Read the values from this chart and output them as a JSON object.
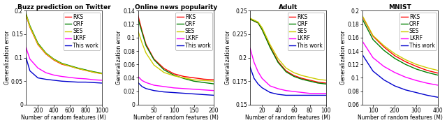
{
  "panels": [
    {
      "title": "Buzz prediction on Twitter",
      "xlabel": "Number of random features (M)",
      "ylabel": "Generalization error",
      "xlim": [
        50,
        1000
      ],
      "ylim": [
        0,
        0.2
      ],
      "xticks": [
        200,
        400,
        600,
        800,
        1000
      ],
      "yticks": [
        0,
        0.05,
        0.1,
        0.15,
        0.2
      ],
      "ytick_labels": [
        "0",
        "0.05",
        "0.1",
        "0.15",
        "0.2"
      ],
      "series": {
        "RKS": {
          "x": [
            50,
            100,
            200,
            300,
            400,
            500,
            600,
            700,
            800,
            900,
            1000
          ],
          "y": [
            0.192,
            0.165,
            0.128,
            0.108,
            0.095,
            0.086,
            0.082,
            0.077,
            0.073,
            0.069,
            0.066
          ],
          "color": "#FF0000"
        },
        "ORF": {
          "x": [
            50,
            100,
            200,
            300,
            400,
            500,
            600,
            700,
            800,
            900,
            1000
          ],
          "y": [
            0.194,
            0.168,
            0.131,
            0.11,
            0.097,
            0.088,
            0.083,
            0.078,
            0.074,
            0.07,
            0.067
          ],
          "color": "#008000"
        },
        "SES": {
          "x": [
            50,
            100,
            200,
            300,
            400,
            500,
            600,
            700,
            800,
            900,
            1000
          ],
          "y": [
            0.193,
            0.166,
            0.129,
            0.109,
            0.096,
            0.087,
            0.082,
            0.077,
            0.073,
            0.069,
            0.066
          ],
          "color": "#CCCC00"
        },
        "LKRF": {
          "x": [
            50,
            100,
            200,
            300,
            400,
            500,
            600,
            700,
            800,
            900,
            1000
          ],
          "y": [
            0.122,
            0.097,
            0.078,
            0.068,
            0.063,
            0.06,
            0.058,
            0.056,
            0.055,
            0.053,
            0.052
          ],
          "color": "#FF00FF"
        },
        "This work": {
          "x": [
            50,
            100,
            200,
            300,
            400,
            500,
            600,
            700,
            800,
            900,
            1000
          ],
          "y": [
            0.101,
            0.072,
            0.057,
            0.054,
            0.052,
            0.05,
            0.049,
            0.048,
            0.048,
            0.047,
            0.046
          ],
          "color": "#0000CD"
        }
      }
    },
    {
      "title": "Online news popularity",
      "xlabel": "Number of random features (M)",
      "ylabel": "Generalization error",
      "xlim": [
        10,
        200
      ],
      "ylim": [
        0,
        0.14
      ],
      "xticks": [
        50,
        100,
        150,
        200
      ],
      "yticks": [
        0,
        0.02,
        0.04,
        0.06,
        0.08,
        0.1,
        0.12,
        0.14
      ],
      "ytick_labels": [
        "0",
        "0.02",
        "0.04",
        "0.06",
        "0.08",
        "0.1",
        "0.12",
        "0.14"
      ],
      "series": {
        "RKS": {
          "x": [
            10,
            20,
            30,
            50,
            75,
            100,
            125,
            150,
            175,
            200
          ],
          "y": [
            0.133,
            0.11,
            0.09,
            0.068,
            0.054,
            0.046,
            0.042,
            0.04,
            0.038,
            0.037
          ],
          "color": "#FF0000"
        },
        "ORF": {
          "x": [
            10,
            20,
            30,
            50,
            75,
            100,
            125,
            150,
            175,
            200
          ],
          "y": [
            0.128,
            0.108,
            0.088,
            0.067,
            0.052,
            0.044,
            0.039,
            0.035,
            0.033,
            0.031
          ],
          "color": "#008000"
        },
        "SES": {
          "x": [
            10,
            20,
            30,
            50,
            75,
            100,
            125,
            150,
            175,
            200
          ],
          "y": [
            0.11,
            0.092,
            0.077,
            0.059,
            0.048,
            0.043,
            0.04,
            0.037,
            0.036,
            0.035
          ],
          "color": "#CCCC00"
        },
        "LKRF": {
          "x": [
            10,
            20,
            30,
            50,
            75,
            100,
            125,
            150,
            175,
            200
          ],
          "y": [
            0.042,
            0.036,
            0.033,
            0.029,
            0.027,
            0.025,
            0.024,
            0.023,
            0.022,
            0.021
          ],
          "color": "#FF00FF"
        },
        "This work": {
          "x": [
            10,
            20,
            30,
            50,
            75,
            100,
            125,
            150,
            175,
            200
          ],
          "y": [
            0.033,
            0.027,
            0.024,
            0.021,
            0.019,
            0.018,
            0.017,
            0.016,
            0.015,
            0.014
          ],
          "color": "#0000CD"
        }
      }
    },
    {
      "title": "Adult",
      "xlabel": "Number of random features (M)",
      "ylabel": "Generalization error",
      "xlim": [
        5,
        100
      ],
      "ylim": [
        0.15,
        0.25
      ],
      "xticks": [
        20,
        40,
        60,
        80,
        100
      ],
      "yticks": [
        0.15,
        0.175,
        0.2,
        0.225,
        0.25
      ],
      "ytick_labels": [
        "0.15",
        "0.175",
        "0.2",
        "0.225",
        "0.25"
      ],
      "series": {
        "RKS": {
          "x": [
            5,
            10,
            15,
            20,
            30,
            40,
            50,
            60,
            70,
            80,
            90,
            100
          ],
          "y": [
            0.241,
            0.239,
            0.237,
            0.23,
            0.212,
            0.196,
            0.186,
            0.181,
            0.178,
            0.176,
            0.174,
            0.173
          ],
          "color": "#FF0000"
        },
        "ORF": {
          "x": [
            5,
            10,
            15,
            20,
            30,
            40,
            50,
            60,
            70,
            80,
            90,
            100
          ],
          "y": [
            0.241,
            0.239,
            0.237,
            0.23,
            0.211,
            0.195,
            0.185,
            0.18,
            0.177,
            0.175,
            0.173,
            0.172
          ],
          "color": "#008000"
        },
        "SES": {
          "x": [
            5,
            10,
            15,
            20,
            30,
            40,
            50,
            60,
            70,
            80,
            90,
            100
          ],
          "y": [
            0.242,
            0.24,
            0.238,
            0.232,
            0.214,
            0.199,
            0.189,
            0.184,
            0.181,
            0.179,
            0.177,
            0.176
          ],
          "color": "#CCCC00"
        },
        "LKRF": {
          "x": [
            5,
            10,
            15,
            20,
            30,
            40,
            50,
            60,
            70,
            80,
            90,
            100
          ],
          "y": [
            0.21,
            0.195,
            0.185,
            0.178,
            0.17,
            0.167,
            0.165,
            0.164,
            0.163,
            0.162,
            0.162,
            0.162
          ],
          "color": "#FF00FF"
        },
        "This work": {
          "x": [
            5,
            10,
            15,
            20,
            30,
            40,
            50,
            60,
            70,
            80,
            90,
            100
          ],
          "y": [
            0.19,
            0.178,
            0.172,
            0.168,
            0.163,
            0.161,
            0.16,
            0.16,
            0.16,
            0.16,
            0.16,
            0.16
          ],
          "color": "#0000CD"
        }
      }
    },
    {
      "title": "MNIST",
      "xlabel": "Number of random features (M)",
      "ylabel": "Generalization error",
      "xlim": [
        50,
        400
      ],
      "ylim": [
        0.06,
        0.2
      ],
      "xticks": [
        100,
        200,
        300,
        400
      ],
      "yticks": [
        0.06,
        0.08,
        0.1,
        0.12,
        0.14,
        0.16,
        0.18,
        0.2
      ],
      "ytick_labels": [
        "0.06",
        "0.08",
        "0.1",
        "0.12",
        "0.14",
        "0.16",
        "0.18",
        "0.2"
      ],
      "series": {
        "RKS": {
          "x": [
            50,
            100,
            150,
            200,
            250,
            300,
            350,
            400
          ],
          "y": [
            0.192,
            0.162,
            0.146,
            0.133,
            0.124,
            0.117,
            0.111,
            0.107
          ],
          "color": "#FF0000"
        },
        "ORF": {
          "x": [
            50,
            100,
            150,
            200,
            250,
            300,
            350,
            400
          ],
          "y": [
            0.188,
            0.157,
            0.141,
            0.129,
            0.12,
            0.113,
            0.108,
            0.104
          ],
          "color": "#008000"
        },
        "SES": {
          "x": [
            50,
            100,
            150,
            200,
            250,
            300,
            350,
            400
          ],
          "y": [
            0.193,
            0.163,
            0.148,
            0.136,
            0.127,
            0.12,
            0.115,
            0.111
          ],
          "color": "#CCCC00"
        },
        "LKRF": {
          "x": [
            50,
            100,
            150,
            200,
            250,
            300,
            350,
            400
          ],
          "y": [
            0.155,
            0.13,
            0.117,
            0.108,
            0.101,
            0.096,
            0.092,
            0.089
          ],
          "color": "#FF00FF"
        },
        "This work": {
          "x": [
            50,
            100,
            150,
            200,
            250,
            300,
            350,
            400
          ],
          "y": [
            0.135,
            0.11,
            0.097,
            0.088,
            0.082,
            0.078,
            0.074,
            0.071
          ],
          "color": "#0000CD"
        }
      }
    }
  ],
  "legend_order": [
    "RKS",
    "ORF",
    "SES",
    "LKRF",
    "This work"
  ],
  "linewidth": 1.0,
  "fontsize_title": 6.5,
  "fontsize_label": 5.5,
  "fontsize_tick": 5.5,
  "fontsize_legend": 5.5
}
